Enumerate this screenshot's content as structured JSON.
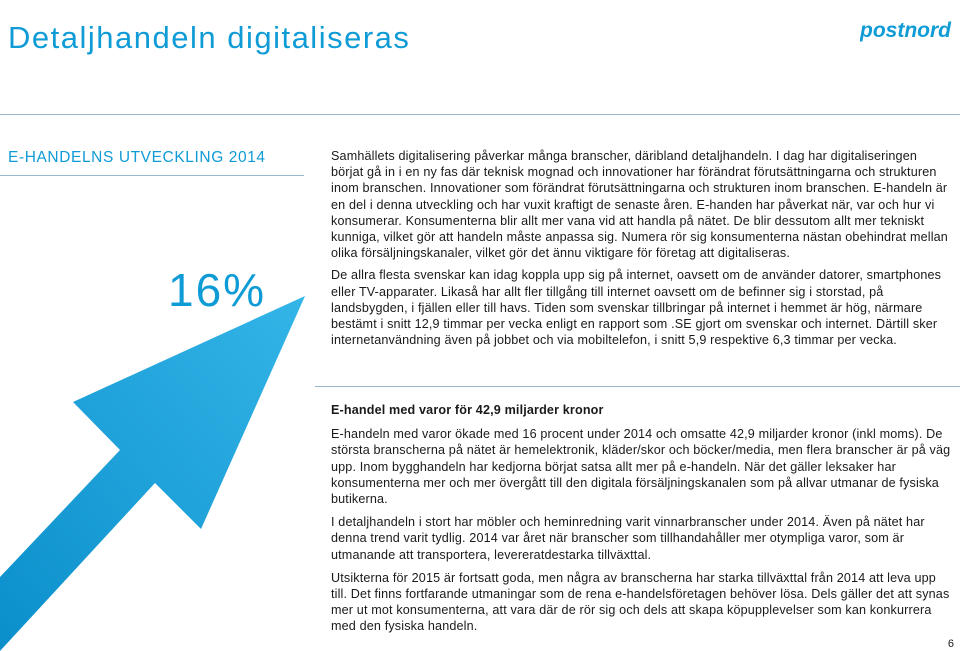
{
  "header": {
    "title": "Detaljhandeln digitaliseras",
    "logo_text": "postnord"
  },
  "sidebar": {
    "section_label": "E-HANDELNS UTVECKLING 2014",
    "big_number": "16%",
    "arrow_icon": "up-right-arrow-icon",
    "accent_color": "#0e9bd6"
  },
  "intro": {
    "paragraphs": [
      "Samhällets digitalisering påverkar många branscher, däribland detaljhandeln. I dag har digitaliseringen börjat gå in i en ny fas där teknisk mognad och innovationer har förändrat förutsättningarna och strukturen inom branschen. Innovationer som förändrat förutsättningarna och strukturen inom branschen. E-handeln är en del i denna utveckling och har vuxit kraftigt de senaste åren. E-handen har påverkat när, var och hur vi konsumerar. Konsumenterna blir allt mer vana vid att handla på nätet. De blir dessutom allt mer tekniskt kunniga, vilket gör att handeln måste anpassa sig. Numera rör sig konsumenterna nästan obehindrat mellan olika försäljningskanaler, vilket gör det ännu viktigare för företag att digitaliseras.",
      "De allra flesta svenskar kan idag koppla upp sig på internet, oavsett om de använder datorer, smartphones eller TV-apparater. Likaså har allt fler tillgång till internet oavsett om de befinner sig i storstad, på landsbygden, i fjällen eller till havs. Tiden som svenskar tillbringar på internet i hemmet är hög, närmare bestämt i snitt 12,9 timmar per vecka enligt en rapport som .SE gjort om svenskar och internet. Därtill sker internetanvändning även på jobbet och via mobiltelefon, i snitt 5,9 respektive 6,3 timmar per vecka."
    ]
  },
  "section": {
    "heading": "E-handel med varor för 42,9 miljarder kronor",
    "paragraphs": [
      "E-handeln med varor ökade med 16 procent under 2014 och omsatte 42,9 miljarder kronor (inkl moms). De största branscherna på nätet är hemelektronik, kläder/skor och böcker/media, men flera branscher är på väg upp. Inom bygghandeln har kedjorna börjat satsa allt mer på e-handeln. När det gäller leksaker har konsumenterna mer och mer övergått till den digitala försäljningskanalen som på allvar utmanar de fysiska butikerna.",
      "I detaljhandeln i stort har möbler och heminredning varit vinnarbranscher under 2014. Även på nätet har denna trend varit tydlig. 2014 var året när branscher som tillhandahåller mer otympliga varor, som är utmanande att transportera, levereratdestarka tillväxttal.",
      "Utsikterna för 2015 är fortsatt goda, men några av branscherna har starka tillväxttal från 2014 att leva upp till. Det finns fortfarande utmaningar som de rena e-handelsföretagen behöver lösa. Dels gäller det att synas mer ut mot konsumenterna, att vara där de rör sig och dels att skapa köpupplevelser som kan konkurrera med den fysiska handeln."
    ]
  },
  "footer": {
    "page_number": "6"
  }
}
